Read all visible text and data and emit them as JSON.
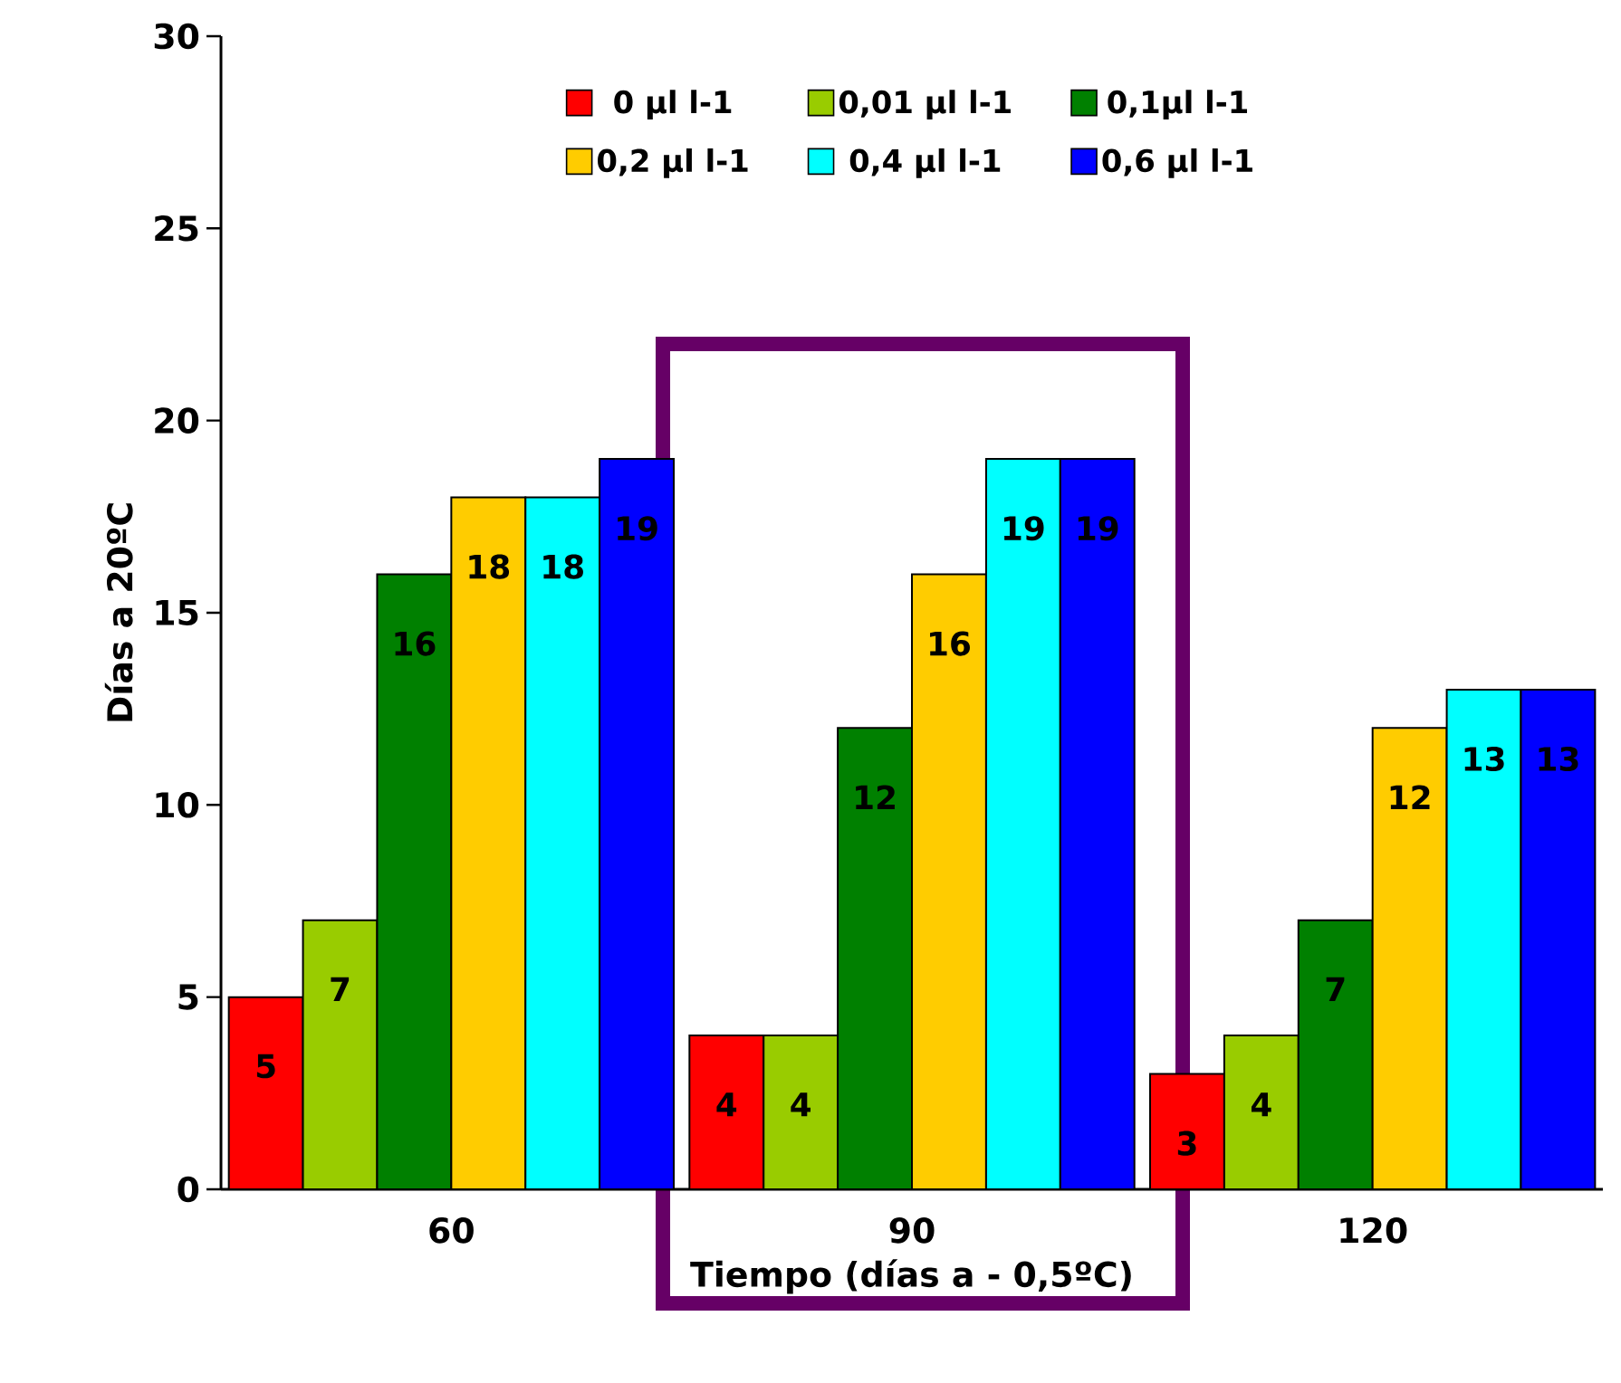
{
  "chart_data": {
    "type": "bar",
    "xlabel": "Tiempo (días a - 0,5ºC)",
    "ylabel": "Días a 20ºC",
    "categories": [
      "60",
      "90",
      "120"
    ],
    "series": [
      {
        "name": "0 µl l-1",
        "color": "#ff0000",
        "values": [
          5,
          4,
          3
        ]
      },
      {
        "name": "0,01 µl l-1",
        "color": "#99cc00",
        "values": [
          7,
          4,
          4
        ]
      },
      {
        "name": "0,1µl l-1",
        "color": "#008000",
        "values": [
          16,
          12,
          7
        ]
      },
      {
        "name": "0,2 µl l-1",
        "color": "#ffcc00",
        "values": [
          18,
          16,
          12
        ]
      },
      {
        "name": "0,4 µl l-1",
        "color": "#00ffff",
        "values": [
          18,
          19,
          13
        ]
      },
      {
        "name": "0,6 µl l-1",
        "color": "#0000ff",
        "values": [
          19,
          19,
          13
        ]
      }
    ],
    "ylim": [
      0,
      30
    ],
    "yticks": [
      0,
      5,
      10,
      15,
      20,
      25,
      30
    ],
    "grid": false,
    "legend": "top",
    "data_labels": true
  }
}
